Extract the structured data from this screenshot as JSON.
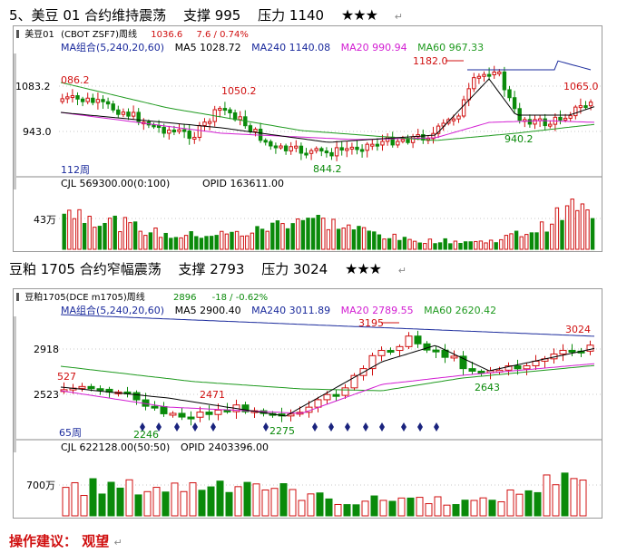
{
  "section1": {
    "heading_prefix": "5、",
    "title": "美豆 01 合约维持震荡",
    "support": "支撑 995",
    "resistance": "压力 1140",
    "stars": "★★★"
  },
  "chart1": {
    "symbol": "美豆01",
    "exchange": "(CBOT ZSF7)周线",
    "last_price": "1036.6",
    "change": "7.6 / 0.74%",
    "ma_group": "MA组合(5,240,20,60)",
    "ma5": "MA5 1028.72",
    "ma240": "MA240 1140.08",
    "ma20": "MA20 990.94",
    "ma60": "MA60 967.33",
    "y_labels": [
      "1083.2",
      "943.0"
    ],
    "annotations": [
      "086.2",
      "1050.2",
      "1182.0",
      "1065.0",
      "940.2",
      "844.2"
    ],
    "period": "112周",
    "cjl": "CJL 569300.00(0:100)",
    "opid": "OPID 163611.00",
    "vol_label": "43万"
  },
  "section2": {
    "title": "豆粕 1705 合约窄幅震荡",
    "support": "支撑 2793",
    "resistance": "压力 3024",
    "stars": "★★★"
  },
  "chart2": {
    "symbol": "豆粕1705(DCE m1705)周线",
    "last_price": "2896",
    "change": "-18 / -0.62%",
    "ma_group": "MA组合(5,240,20,60)",
    "ma5": "MA5 2900.40",
    "ma240": "MA240 3011.89",
    "ma20": "MA20 2789.55",
    "ma60": "MA60 2620.42",
    "y_labels": [
      "2918",
      "2523"
    ],
    "annotations": [
      "527",
      "2471",
      "3195",
      "3024",
      "2643",
      "2246",
      "2275"
    ],
    "period": "65周",
    "cjl": "CJL 622128.00(50:50)",
    "opid": "OPID 2403396.00",
    "vol_label": "700万"
  },
  "advice": {
    "label": "操作建议：",
    "value": "观望"
  },
  "colors": {
    "up": "#d01010",
    "down": "#0a8a0a",
    "ma5": "#000000",
    "ma240": "#1a2a9c",
    "ma20": "#d21ed2",
    "ma60": "#1f9a1f",
    "signal": "#1a237e"
  }
}
